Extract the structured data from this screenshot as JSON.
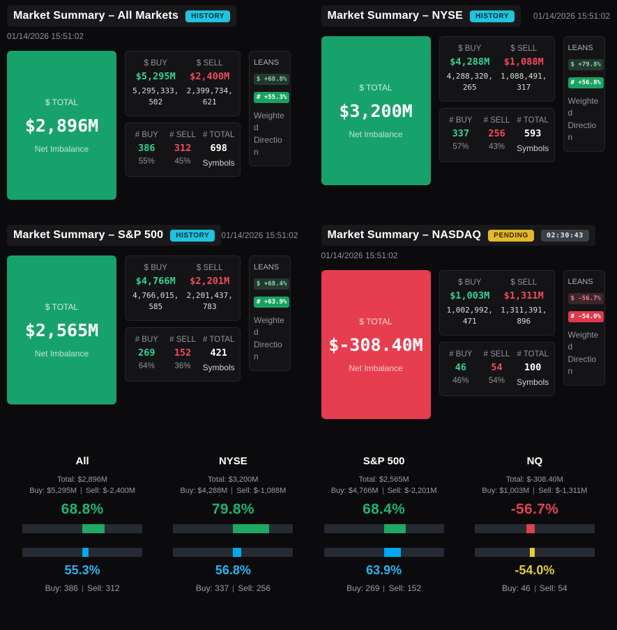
{
  "colors": {
    "positive_card": "#17a26b",
    "negative_card": "#e73e4f",
    "dollar_bar_positive": "#1fa863",
    "dollar_bar_negative": "#e0414f",
    "count_bar_positive": "#00a9ee",
    "count_bar_negative": "#e6cb3c"
  },
  "panels": [
    {
      "title": "Market Summary – All Markets",
      "badge": "HISTORY",
      "badge_type": "history",
      "timer": "",
      "timestamp": "01/14/2026 15:51:02",
      "tone": "positive",
      "header_layout": "stacked",
      "card": {
        "label": "$ TOTAL",
        "value": "$2,896M",
        "sub": "Net Imbalance"
      },
      "dollar": {
        "buy_label": "$ BUY",
        "buy_value": "$5,295M",
        "buy_detail": "5,295,333,502",
        "sell_label": "$ SELL",
        "sell_value": "$2,400M",
        "sell_detail": "2,399,734,621"
      },
      "count": {
        "buy_label": "# BUY",
        "buy_value": "386",
        "buy_pct": "55%",
        "sell_label": "# SELL",
        "sell_value": "312",
        "sell_pct": "45%",
        "total_label": "# TOTAL",
        "total_value": "698",
        "total_sub": "Symbols"
      },
      "leans": {
        "label": "LEANS",
        "dollar": "$ +68.8%",
        "count": "# +55.3%",
        "caption": "Weighted Direction"
      }
    },
    {
      "title": "Market Summary – NYSE",
      "badge": "HISTORY",
      "badge_type": "history",
      "timer": "",
      "timestamp": "01/14/2026 15:51:02",
      "tone": "positive",
      "header_layout": "inline",
      "card": {
        "label": "$ TOTAL",
        "value": "$3,200M",
        "sub": "Net Imbalance"
      },
      "dollar": {
        "buy_label": "$ BUY",
        "buy_value": "$4,288M",
        "buy_detail": "4,288,320,265",
        "sell_label": "$ SELL",
        "sell_value": "$1,088M",
        "sell_detail": "1,088,491,317"
      },
      "count": {
        "buy_label": "# BUY",
        "buy_value": "337",
        "buy_pct": "57%",
        "sell_label": "# SELL",
        "sell_value": "256",
        "sell_pct": "43%",
        "total_label": "# TOTAL",
        "total_value": "593",
        "total_sub": "Symbols"
      },
      "leans": {
        "label": "LEANS",
        "dollar": "$ +79.8%",
        "count": "# +56.8%",
        "caption": "Weighted Direction"
      }
    },
    {
      "title": "Market Summary – S&P 500",
      "badge": "HISTORY",
      "badge_type": "history",
      "timer": "",
      "timestamp": "01/14/2026 15:51:02",
      "tone": "positive",
      "header_layout": "inline",
      "card": {
        "label": "$ TOTAL",
        "value": "$2,565M",
        "sub": "Net Imbalance"
      },
      "dollar": {
        "buy_label": "$ BUY",
        "buy_value": "$4,766M",
        "buy_detail": "4,766,015,585",
        "sell_label": "$ SELL",
        "sell_value": "$2,201M",
        "sell_detail": "2,201,437,783"
      },
      "count": {
        "buy_label": "# BUY",
        "buy_value": "269",
        "buy_pct": "64%",
        "sell_label": "# SELL",
        "sell_value": "152",
        "sell_pct": "36%",
        "total_label": "# TOTAL",
        "total_value": "421",
        "total_sub": "Symbols"
      },
      "leans": {
        "label": "LEANS",
        "dollar": "$ +68.4%",
        "count": "# +63.9%",
        "caption": "Weighted Direction"
      }
    },
    {
      "title": "Market Summary – NASDAQ",
      "badge": "PENDING",
      "badge_type": "pending",
      "timer": "02:30:43",
      "timestamp": "01/14/2026 15:51:02",
      "tone": "negative",
      "header_layout": "stacked",
      "card": {
        "label": "$ TOTAL",
        "value": "$-308.40M",
        "sub": "Net Imbalance"
      },
      "dollar": {
        "buy_label": "$ BUY",
        "buy_value": "$1,003M",
        "buy_detail": "1,002,992,471",
        "sell_label": "$ SELL",
        "sell_value": "$1,311M",
        "sell_detail": "1,311,391,896"
      },
      "count": {
        "buy_label": "# BUY",
        "buy_value": "46",
        "buy_pct": "46%",
        "sell_label": "# SELL",
        "sell_value": "54",
        "sell_pct": "54%",
        "total_label": "# TOTAL",
        "total_value": "100",
        "total_sub": "Symbols"
      },
      "leans": {
        "label": "LEANS",
        "dollar": "$ -56.7%",
        "count": "# -54.0%",
        "caption": "Weighted Direction"
      }
    }
  ],
  "comparison": [
    {
      "name": "All",
      "tone": "positive",
      "total_line": "Total: $2,896M",
      "dollar_buy": "Buy: $5,295M",
      "dollar_sell": "Sell: $-2,400M",
      "dollar_pct": "68.8%",
      "dollar_pct_value": 68.8,
      "count_pct": "55.3%",
      "count_pct_value": 55.3,
      "count_buy": "Buy: 386",
      "count_sell": "Sell: 312"
    },
    {
      "name": "NYSE",
      "tone": "positive",
      "total_line": "Total: $3,200M",
      "dollar_buy": "Buy: $4,288M",
      "dollar_sell": "Sell: $-1,088M",
      "dollar_pct": "79.8%",
      "dollar_pct_value": 79.8,
      "count_pct": "56.8%",
      "count_pct_value": 56.8,
      "count_buy": "Buy: 337",
      "count_sell": "Sell: 256"
    },
    {
      "name": "S&P 500",
      "tone": "positive",
      "total_line": "Total: $2,565M",
      "dollar_buy": "Buy: $4,766M",
      "dollar_sell": "Sell: $-2,201M",
      "dollar_pct": "68.4%",
      "dollar_pct_value": 68.4,
      "count_pct": "63.9%",
      "count_pct_value": 63.9,
      "count_buy": "Buy: 269",
      "count_sell": "Sell: 152"
    },
    {
      "name": "NQ",
      "tone": "negative",
      "total_line": "Total: $-308.40M",
      "dollar_buy": "Buy: $1,003M",
      "dollar_sell": "Sell: $-1,311M",
      "dollar_pct": "-56.7%",
      "dollar_pct_value": -56.7,
      "count_pct": "-54.0%",
      "count_pct_value": -54.0,
      "count_buy": "Buy: 46",
      "count_sell": "Sell: 54"
    }
  ]
}
